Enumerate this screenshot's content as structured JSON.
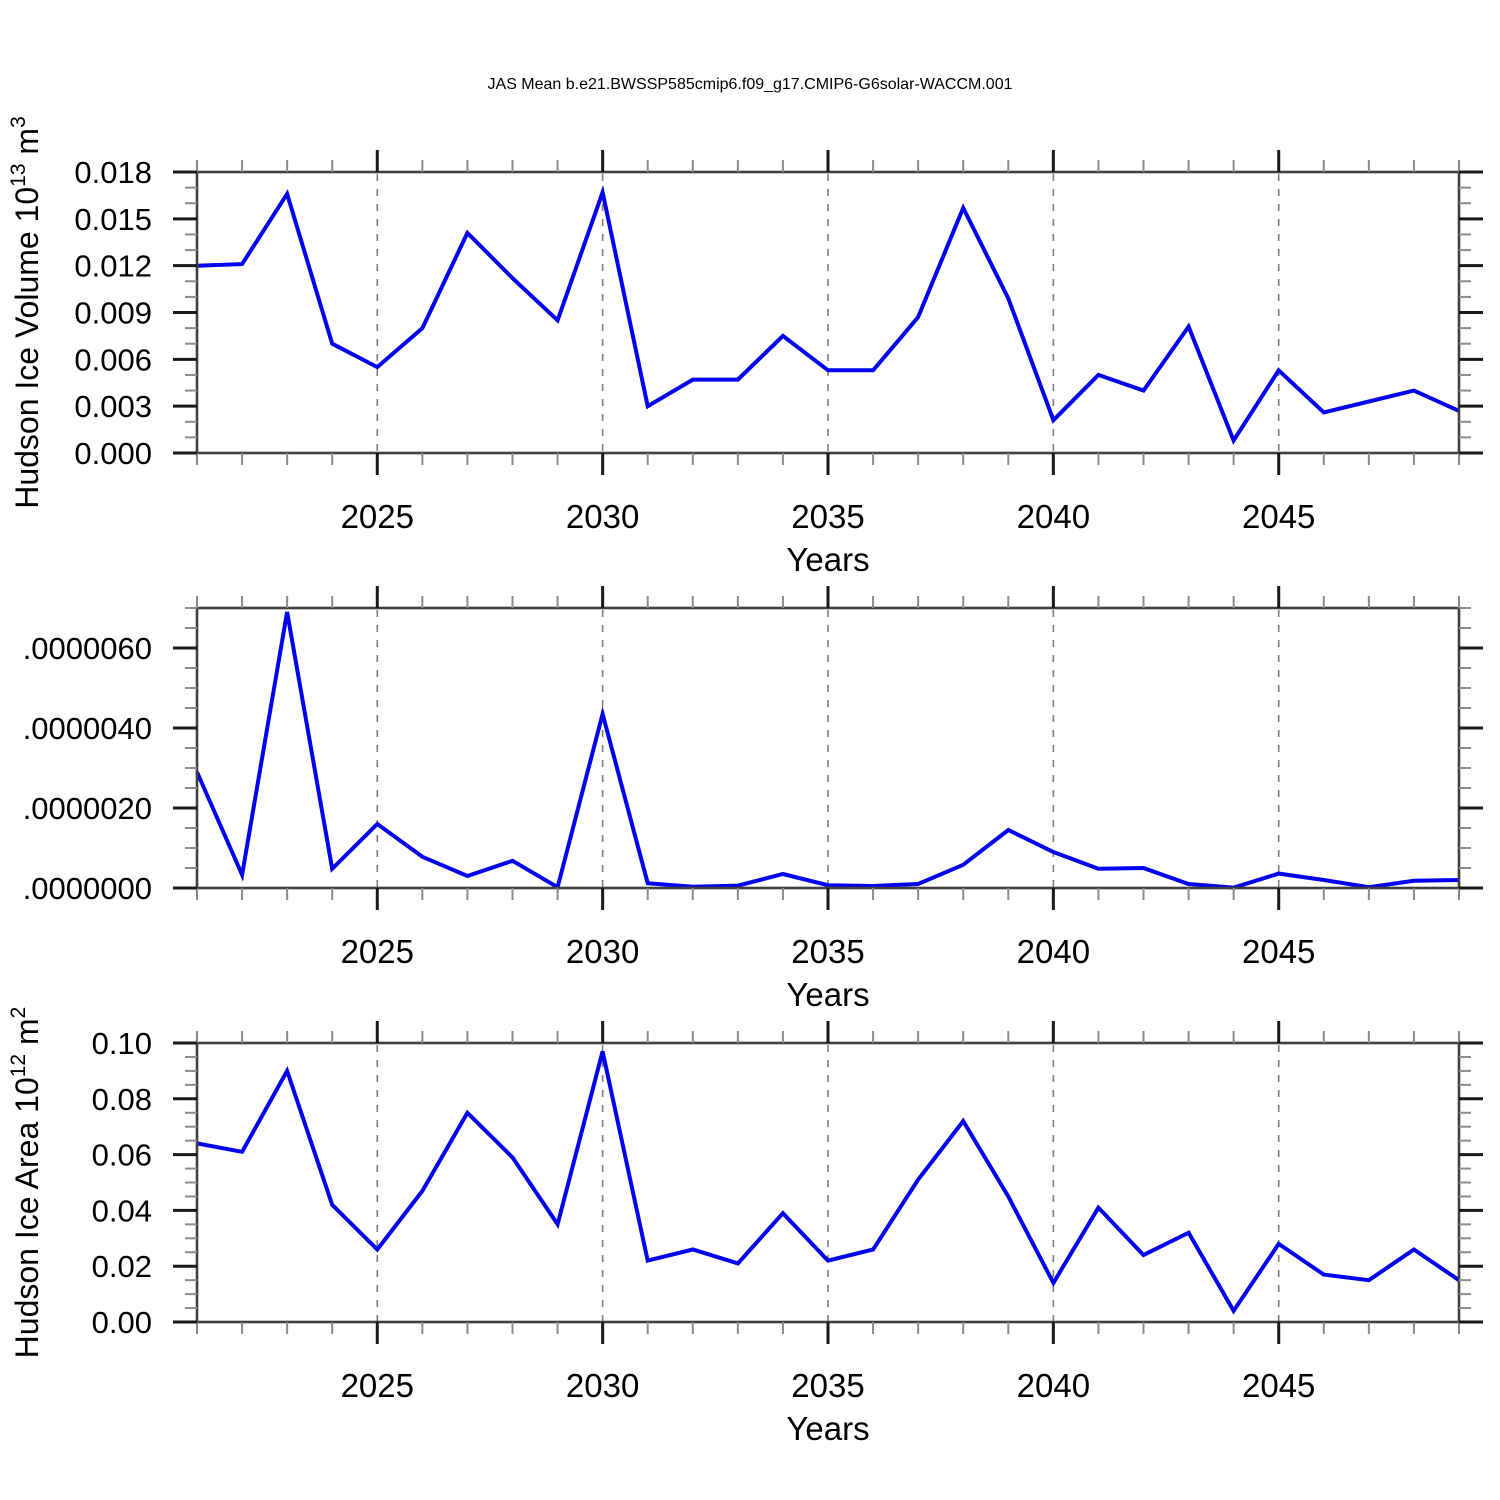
{
  "title": "JAS Mean b.e21.BWSSP585cmip6.f09_g17.CMIP6-G6solar-WACCM.001",
  "colors": {
    "line": "#0202f0",
    "frame": "#3f3f3f",
    "major_tick": "#1a1a1a",
    "minor_tick": "#8a8a8a",
    "grid": "#7f7f7f",
    "text": "#000000",
    "background": "#ffffff"
  },
  "x_axis": {
    "label": "Years",
    "years": [
      2021,
      2022,
      2023,
      2024,
      2025,
      2026,
      2027,
      2028,
      2029,
      2030,
      2031,
      2032,
      2033,
      2034,
      2035,
      2036,
      2037,
      2038,
      2039,
      2040,
      2041,
      2042,
      2043,
      2044,
      2045,
      2046,
      2047,
      2048,
      2049
    ],
    "major_tick_years": [
      2025,
      2030,
      2035,
      2040,
      2045
    ],
    "major_tick_labels": [
      "2025",
      "2030",
      "2035",
      "2040",
      "2045"
    ],
    "minor_tick_interval_years": 1,
    "gridlines": "dashed-vertical-at-major-ticks"
  },
  "chart_data": [
    {
      "type": "line",
      "panel": "top",
      "ylabel": "Hudson Ice Volume 10^13 m^3",
      "ylabel_parts": [
        [
          "Hudson Ice Volume 10",
          false
        ],
        [
          "13",
          true
        ],
        [
          " m",
          false
        ],
        [
          "3",
          true
        ]
      ],
      "xlabel": "Years",
      "ylim": [
        0,
        0.018
      ],
      "ytick_values": [
        0.0,
        0.003,
        0.006,
        0.009,
        0.012,
        0.015,
        0.018
      ],
      "ytick_labels": [
        "0.000",
        "0.003",
        "0.006",
        "0.009",
        "0.012",
        "0.015",
        "0.018"
      ],
      "yminor_step": 0.001,
      "x": [
        2021,
        2022,
        2023,
        2024,
        2025,
        2026,
        2027,
        2028,
        2029,
        2030,
        2031,
        2032,
        2033,
        2034,
        2035,
        2036,
        2037,
        2038,
        2039,
        2040,
        2041,
        2042,
        2043,
        2044,
        2045,
        2046,
        2047,
        2048,
        2049
      ],
      "values": [
        0.012,
        0.0121,
        0.0166,
        0.007,
        0.0055,
        0.008,
        0.0141,
        0.0112,
        0.0085,
        0.0167,
        0.003,
        0.0047,
        0.0047,
        0.0075,
        0.0053,
        0.0053,
        0.0087,
        0.0157,
        0.0099,
        0.0021,
        0.005,
        0.004,
        0.0081,
        0.0008,
        0.0053,
        0.0026,
        0.0033,
        0.004,
        0.0027
      ]
    },
    {
      "type": "line",
      "panel": "middle",
      "ylabel": "",
      "ylabel_parts": [],
      "xlabel": "Years",
      "ylim": [
        0,
        7e-06
      ],
      "ytick_values": [
        0.0,
        2e-06,
        4e-06,
        6e-06
      ],
      "ytick_labels": [
        ".0000000",
        ".0000020",
        ".0000040",
        ".0000060"
      ],
      "yminor_step": 5e-07,
      "x": [
        2021,
        2022,
        2023,
        2024,
        2025,
        2026,
        2027,
        2028,
        2029,
        2030,
        2031,
        2032,
        2033,
        2034,
        2035,
        2036,
        2037,
        2038,
        2039,
        2040,
        2041,
        2042,
        2043,
        2044,
        2045,
        2046,
        2047,
        2048,
        2049
      ],
      "values": [
        2.9e-06,
        3.3e-07,
        6.9e-06,
        4.8e-07,
        1.6e-06,
        7.8e-07,
        3e-07,
        6.8e-07,
        2e-08,
        4.35e-06,
        1.2e-07,
        3e-08,
        6e-08,
        3.5e-07,
        7e-08,
        5e-08,
        1e-07,
        5.8e-07,
        1.45e-06,
        9e-07,
        4.8e-07,
        5e-07,
        1e-07,
        1e-08,
        3.6e-07,
        2e-07,
        2e-08,
        1.8e-07,
        2e-07
      ]
    },
    {
      "type": "line",
      "panel": "bottom",
      "ylabel": "Hudson Ice Area 10^12 m^2",
      "ylabel_parts": [
        [
          "Hudson Ice Area 10",
          false
        ],
        [
          "12",
          true
        ],
        [
          " m",
          false
        ],
        [
          "2",
          true
        ]
      ],
      "xlabel": "Years",
      "ylim": [
        0,
        0.1
      ],
      "ytick_values": [
        0.0,
        0.02,
        0.04,
        0.06,
        0.08,
        0.1
      ],
      "ytick_labels": [
        "0.00",
        "0.02",
        "0.04",
        "0.06",
        "0.08",
        "0.10"
      ],
      "yminor_step": 0.005,
      "x": [
        2021,
        2022,
        2023,
        2024,
        2025,
        2026,
        2027,
        2028,
        2029,
        2030,
        2031,
        2032,
        2033,
        2034,
        2035,
        2036,
        2037,
        2038,
        2039,
        2040,
        2041,
        2042,
        2043,
        2044,
        2045,
        2046,
        2047,
        2048,
        2049
      ],
      "values": [
        0.064,
        0.061,
        0.09,
        0.042,
        0.026,
        0.047,
        0.075,
        0.059,
        0.035,
        0.097,
        0.022,
        0.026,
        0.021,
        0.039,
        0.022,
        0.026,
        0.051,
        0.072,
        0.045,
        0.014,
        0.041,
        0.024,
        0.032,
        0.004,
        0.028,
        0.017,
        0.015,
        0.026,
        0.015
      ]
    }
  ]
}
